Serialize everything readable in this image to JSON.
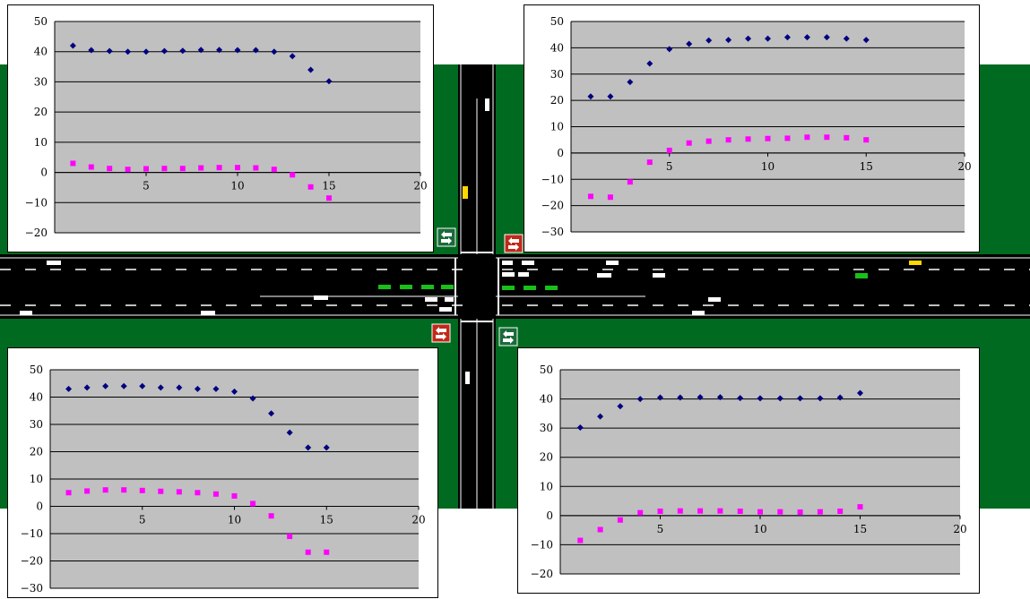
{
  "scene": {
    "road_color": "#000000",
    "grass_color": "#006a21",
    "lane_mark_color": "#ffffff",
    "vehicle_white": "#ffffff",
    "vehicle_green": "#18c018",
    "vehicle_yellow": "#ffd800",
    "signal_icons": [
      "traffic-signal-green-icon",
      "traffic-signal-red-icon"
    ]
  },
  "chart_data": [
    {
      "type": "scatter",
      "position": "top-left",
      "grid": "horizontal",
      "plot_bg": "#c0c0c0",
      "xlim": [
        0,
        20
      ],
      "ylim": [
        -20,
        50
      ],
      "xticks": [
        5,
        10,
        15,
        20
      ],
      "yticks": [
        50,
        40,
        30,
        20,
        10,
        0,
        -10,
        -20
      ],
      "x_tick_labels": [
        "5",
        "10",
        "15",
        "20"
      ],
      "y_tick_labels": [
        "50",
        "40",
        "30",
        "20",
        "10",
        "0",
        "−10",
        "−20"
      ],
      "series": [
        {
          "marker": "diamond",
          "color": "#000080",
          "x": [
            1,
            2,
            3,
            4,
            5,
            6,
            7,
            8,
            9,
            10,
            11,
            12,
            13,
            14,
            15
          ],
          "y": [
            42,
            40.5,
            40.2,
            40,
            40,
            40.2,
            40.3,
            40.6,
            40.6,
            40.5,
            40.5,
            40,
            38.5,
            34,
            30.2
          ]
        },
        {
          "marker": "square",
          "color": "#ff00ff",
          "x": [
            1,
            2,
            3,
            4,
            5,
            6,
            7,
            8,
            9,
            10,
            11,
            12,
            13,
            14,
            15
          ],
          "y": [
            3,
            1.8,
            1.3,
            1,
            1.2,
            1.3,
            1.3,
            1.5,
            1.6,
            1.6,
            1.5,
            1,
            -0.8,
            -4.8,
            -8.5
          ]
        }
      ]
    },
    {
      "type": "scatter",
      "position": "top-right",
      "grid": "horizontal",
      "plot_bg": "#c0c0c0",
      "xlim": [
        0,
        20
      ],
      "ylim": [
        -30,
        50
      ],
      "xticks": [
        5,
        10,
        15,
        20
      ],
      "yticks": [
        50,
        40,
        30,
        20,
        10,
        0,
        -10,
        -20,
        -30
      ],
      "x_tick_labels": [
        "5",
        "10",
        "15",
        "20"
      ],
      "y_tick_labels": [
        "50",
        "40",
        "30",
        "20",
        "10",
        "0",
        "−10",
        "−20",
        "−30"
      ],
      "series": [
        {
          "marker": "diamond",
          "color": "#000080",
          "x": [
            1,
            2,
            3,
            4,
            5,
            6,
            7,
            8,
            9,
            10,
            11,
            12,
            13,
            14,
            15
          ],
          "y": [
            21.5,
            21.5,
            27,
            34,
            39.5,
            41.5,
            42.8,
            43,
            43.5,
            43.5,
            44,
            44,
            44,
            43.5,
            43
          ]
        },
        {
          "marker": "square",
          "color": "#ff00ff",
          "x": [
            1,
            2,
            3,
            4,
            5,
            6,
            7,
            8,
            9,
            10,
            11,
            12,
            13,
            14,
            15
          ],
          "y": [
            -16.5,
            -16.8,
            -11,
            -3.5,
            1,
            3.8,
            4.5,
            5,
            5.3,
            5.5,
            5.6,
            6,
            6,
            5.8,
            5
          ]
        }
      ]
    },
    {
      "type": "scatter",
      "position": "bottom-left",
      "grid": "horizontal",
      "plot_bg": "#c0c0c0",
      "xlim": [
        0,
        20
      ],
      "ylim": [
        -30,
        50
      ],
      "xticks": [
        5,
        10,
        15,
        20
      ],
      "yticks": [
        50,
        40,
        30,
        20,
        10,
        0,
        -10,
        -20,
        -30
      ],
      "x_tick_labels": [
        "5",
        "10",
        "15",
        "20"
      ],
      "y_tick_labels": [
        "50",
        "40",
        "30",
        "20",
        "10",
        "0",
        "−10",
        "−20",
        "−30"
      ],
      "series": [
        {
          "marker": "diamond",
          "color": "#000080",
          "x": [
            1,
            2,
            3,
            4,
            5,
            6,
            7,
            8,
            9,
            10,
            11,
            12,
            13,
            14,
            15
          ],
          "y": [
            43,
            43.5,
            44,
            44,
            44,
            43.5,
            43.5,
            43,
            43,
            42,
            39.5,
            34,
            27,
            21.5,
            21.5
          ]
        },
        {
          "marker": "square",
          "color": "#ff00ff",
          "x": [
            1,
            2,
            3,
            4,
            5,
            6,
            7,
            8,
            9,
            10,
            11,
            12,
            13,
            14,
            15
          ],
          "y": [
            5,
            5.6,
            6,
            6,
            5.8,
            5.5,
            5.3,
            5,
            4.5,
            3.8,
            1,
            -3.5,
            -11,
            -16.8,
            -16.8
          ]
        }
      ]
    },
    {
      "type": "scatter",
      "position": "bottom-right",
      "grid": "horizontal",
      "plot_bg": "#c0c0c0",
      "xlim": [
        0,
        20
      ],
      "ylim": [
        -20,
        50
      ],
      "xticks": [
        5,
        10,
        15,
        20
      ],
      "yticks": [
        50,
        40,
        30,
        20,
        10,
        0,
        -10,
        -20
      ],
      "x_tick_labels": [
        "5",
        "10",
        "15",
        "20"
      ],
      "y_tick_labels": [
        "50",
        "40",
        "30",
        "20",
        "10",
        "0",
        "−10",
        "−20"
      ],
      "series": [
        {
          "marker": "diamond",
          "color": "#000080",
          "x": [
            1,
            2,
            3,
            4,
            5,
            6,
            7,
            8,
            9,
            10,
            11,
            12,
            13,
            14,
            15
          ],
          "y": [
            30.2,
            34,
            37.5,
            40,
            40.5,
            40.5,
            40.6,
            40.6,
            40.3,
            40.2,
            40.2,
            40.2,
            40.2,
            40.5,
            42
          ]
        },
        {
          "marker": "square",
          "color": "#ff00ff",
          "x": [
            1,
            2,
            3,
            4,
            5,
            6,
            7,
            8,
            9,
            10,
            11,
            12,
            13,
            14,
            15
          ],
          "y": [
            -8.5,
            -4.8,
            -1.5,
            1,
            1.5,
            1.6,
            1.6,
            1.6,
            1.5,
            1.3,
            1.3,
            1.2,
            1.3,
            1.5,
            3
          ]
        }
      ]
    }
  ]
}
